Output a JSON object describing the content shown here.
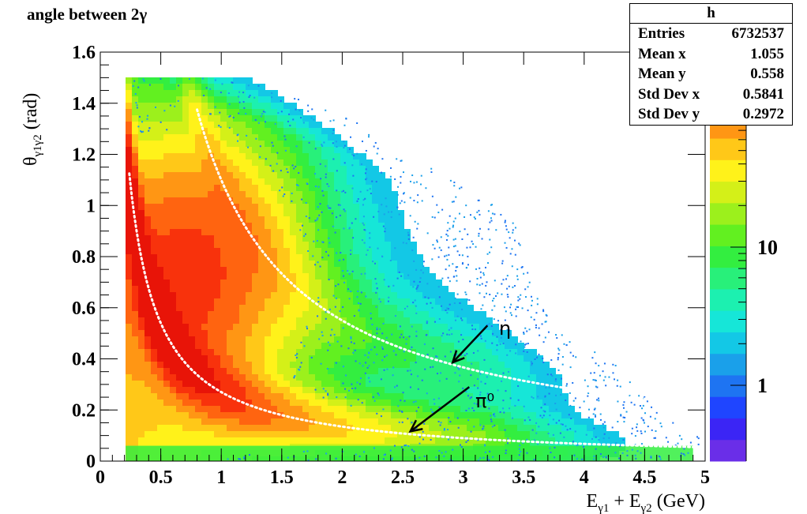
{
  "chart_data": {
    "type": "heatmap",
    "title": "angle between 2γ",
    "xlabel": "Eγ1 + Eγ2 (GeV)",
    "ylabel": "θγ1γ2 (rad)",
    "xlim": [
      0,
      5
    ],
    "ylim": [
      0,
      1.6
    ],
    "x_ticks": [
      "0",
      "0.5",
      "1",
      "1.5",
      "2",
      "2.5",
      "3",
      "3.5",
      "4",
      "4.5",
      "5"
    ],
    "y_ticks": [
      "0",
      "0.2",
      "0.4",
      "0.6",
      "0.8",
      "1",
      "1.2",
      "1.4",
      "1.6"
    ],
    "z_scale": "log",
    "z_ticks": [
      "1",
      "10"
    ],
    "grid": false,
    "annotations": [
      {
        "label": "η",
        "x": 2.9,
        "y": 0.38
      },
      {
        "label": "π⁰",
        "x": 2.55,
        "y": 0.11
      }
    ],
    "stats_box": {
      "title": "h",
      "rows": [
        {
          "label": "Entries",
          "value": "6732537"
        },
        {
          "label": "Mean x",
          "value": "1.055"
        },
        {
          "label": "Mean y",
          "value": "0.558"
        },
        {
          "label": "Std Dev x",
          "value": "0.5841"
        },
        {
          "label": "Std Dev y",
          "value": "0.2972"
        }
      ]
    },
    "colors": {
      "palette": [
        "#6a2ee8",
        "#3b25f5",
        "#1f45ff",
        "#1e74f2",
        "#1aa0ea",
        "#13c8e6",
        "#16e6d8",
        "#1cf0b0",
        "#28f07a",
        "#33ee40",
        "#62f020",
        "#9cf01c",
        "#d4f018",
        "#fff21a",
        "#ffc818",
        "#ff9614",
        "#ff6410",
        "#f8320c",
        "#e81408"
      ]
    }
  }
}
